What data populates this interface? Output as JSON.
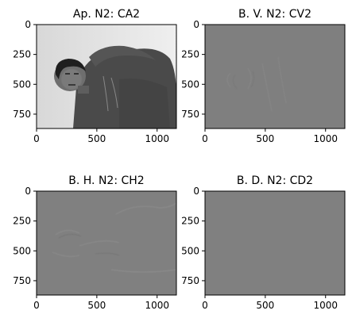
{
  "figure": {
    "panels": [
      {
        "title": "Ap. N2: CA2",
        "image": "grayscale photo: man in dark hooded jacket against light wall",
        "xlim": [
          0,
          1160
        ],
        "ylim": [
          870,
          0
        ],
        "xticks": [
          "0",
          "500",
          "1000"
        ],
        "yticks": [
          "0",
          "250",
          "500",
          "750"
        ]
      },
      {
        "title": "B. V. N2: CV2",
        "image": "flat gray detail coefficients with faint vertical edges",
        "xlim": [
          0,
          1160
        ],
        "ylim": [
          870,
          0
        ],
        "xticks": [
          "0",
          "500",
          "1000"
        ],
        "yticks": [
          "0",
          "250",
          "500",
          "750"
        ]
      },
      {
        "title": "B. H. N2: CH2",
        "image": "flat gray detail coefficients with faint horizontal edges",
        "xlim": [
          0,
          1160
        ],
        "ylim": [
          870,
          0
        ],
        "xticks": [
          "0",
          "500",
          "1000"
        ],
        "yticks": [
          "0",
          "250",
          "500",
          "750"
        ]
      },
      {
        "title": "B. D. N2: CD2",
        "image": "flat gray diagonal detail coefficients",
        "xlim": [
          0,
          1160
        ],
        "ylim": [
          870,
          0
        ],
        "xticks": [
          "0",
          "500",
          "1000"
        ],
        "yticks": [
          "0",
          "250",
          "500",
          "750"
        ]
      }
    ]
  },
  "chart_data": [
    {
      "type": "heatmap",
      "title": "Ap. N2: CA2",
      "xlim": [
        0,
        1160
      ],
      "ylim": [
        870,
        0
      ],
      "x_ticks": [
        0,
        500,
        1000
      ],
      "y_ticks": [
        0,
        250,
        500,
        750
      ],
      "grid": false,
      "colormap": "gray"
    },
    {
      "type": "heatmap",
      "title": "B. V. N2: CV2",
      "xlim": [
        0,
        1160
      ],
      "ylim": [
        870,
        0
      ],
      "x_ticks": [
        0,
        500,
        1000
      ],
      "y_ticks": [
        0,
        250,
        500,
        750
      ],
      "grid": false,
      "colormap": "gray"
    },
    {
      "type": "heatmap",
      "title": "B. H. N2: CH2",
      "xlim": [
        0,
        1160
      ],
      "ylim": [
        870,
        0
      ],
      "x_ticks": [
        0,
        500,
        1000
      ],
      "y_ticks": [
        0,
        250,
        500,
        750
      ],
      "grid": false,
      "colormap": "gray"
    },
    {
      "type": "heatmap",
      "title": "B. D. N2: CD2",
      "xlim": [
        0,
        1160
      ],
      "ylim": [
        870,
        0
      ],
      "x_ticks": [
        0,
        500,
        1000
      ],
      "y_ticks": [
        0,
        250,
        500,
        750
      ],
      "grid": false,
      "colormap": "gray"
    }
  ]
}
